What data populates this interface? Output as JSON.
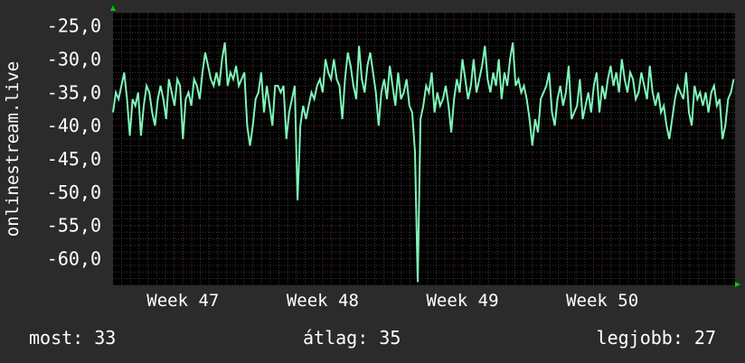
{
  "ylabel": "onlinestream.live",
  "footer": {
    "now": "most: 33",
    "avg": "átlag: 35",
    "best": "legjobb: 27"
  },
  "colors": {
    "background": "#2b2b2b",
    "plot_background": "#000000",
    "line": "#7ff5b8",
    "grid_major": "#5a2020",
    "grid_minor": "#3a3a3a",
    "axis_arrow": "#00cc00"
  },
  "chart_data": {
    "type": "line",
    "title": "",
    "xlabel": "",
    "ylabel": "onlinestream.live",
    "ylim": [
      -64,
      -23
    ],
    "yticks": [
      -25,
      -30,
      -35,
      -40,
      -45,
      -50,
      -55,
      -60
    ],
    "ytick_labels": [
      "-25,0",
      "-30,0",
      "-35,0",
      "-40,0",
      "-45,0",
      "-50,0",
      "-55,0",
      "-60,0"
    ],
    "xlim": [
      46.5,
      50.95
    ],
    "xticks": [
      47,
      48,
      49,
      50
    ],
    "xtick_labels": [
      "Week 47",
      "Week 48",
      "Week 49",
      "Week 50"
    ],
    "grid": true,
    "series": [
      {
        "values": [
          [
            46.5,
            -38
          ],
          [
            46.52,
            -35
          ],
          [
            46.54,
            -36
          ],
          [
            46.56,
            -34
          ],
          [
            46.58,
            -32
          ],
          [
            46.6,
            -36
          ],
          [
            46.62,
            -41.5
          ],
          [
            46.64,
            -36
          ],
          [
            46.66,
            -37
          ],
          [
            46.68,
            -35
          ],
          [
            46.7,
            -41.5
          ],
          [
            46.72,
            -37
          ],
          [
            46.74,
            -34
          ],
          [
            46.76,
            -35
          ],
          [
            46.78,
            -38
          ],
          [
            46.8,
            -40
          ],
          [
            46.82,
            -36
          ],
          [
            46.84,
            -34
          ],
          [
            46.86,
            -36
          ],
          [
            46.88,
            -39
          ],
          [
            46.9,
            -33
          ],
          [
            46.92,
            -35
          ],
          [
            46.94,
            -37
          ],
          [
            46.96,
            -33
          ],
          [
            46.98,
            -34
          ],
          [
            47.0,
            -42
          ],
          [
            47.02,
            -36
          ],
          [
            47.04,
            -35
          ],
          [
            47.06,
            -37
          ],
          [
            47.08,
            -33
          ],
          [
            47.1,
            -34
          ],
          [
            47.12,
            -36
          ],
          [
            47.14,
            -32
          ],
          [
            47.16,
            -29
          ],
          [
            47.18,
            -31
          ],
          [
            47.2,
            -33
          ],
          [
            47.22,
            -34
          ],
          [
            47.24,
            -32
          ],
          [
            47.26,
            -34
          ],
          [
            47.28,
            -30
          ],
          [
            47.3,
            -27.5
          ],
          [
            47.32,
            -34
          ],
          [
            47.34,
            -32
          ],
          [
            47.36,
            -33
          ],
          [
            47.38,
            -31
          ],
          [
            47.4,
            -34
          ],
          [
            47.42,
            -33
          ],
          [
            47.44,
            -32
          ],
          [
            47.46,
            -40
          ],
          [
            47.48,
            -43
          ],
          [
            47.5,
            -40
          ],
          [
            47.52,
            -36
          ],
          [
            47.54,
            -35
          ],
          [
            47.56,
            -32
          ],
          [
            47.58,
            -38
          ],
          [
            47.6,
            -34
          ],
          [
            47.62,
            -37
          ],
          [
            47.64,
            -40
          ],
          [
            47.66,
            -34
          ],
          [
            47.68,
            -34
          ],
          [
            47.7,
            -35
          ],
          [
            47.72,
            -34
          ],
          [
            47.74,
            -42
          ],
          [
            47.76,
            -38
          ],
          [
            47.78,
            -36
          ],
          [
            47.8,
            -34
          ],
          [
            47.82,
            -51.2
          ],
          [
            47.84,
            -40
          ],
          [
            47.86,
            -37
          ],
          [
            47.88,
            -39
          ],
          [
            47.9,
            -37
          ],
          [
            47.92,
            -35
          ],
          [
            47.94,
            -36
          ],
          [
            47.96,
            -34
          ],
          [
            47.98,
            -33
          ],
          [
            48.0,
            -35
          ],
          [
            48.02,
            -30
          ],
          [
            48.04,
            -32
          ],
          [
            48.06,
            -33
          ],
          [
            48.08,
            -30
          ],
          [
            48.1,
            -33
          ],
          [
            48.12,
            -34
          ],
          [
            48.14,
            -39
          ],
          [
            48.16,
            -33
          ],
          [
            48.18,
            -29
          ],
          [
            48.2,
            -31
          ],
          [
            48.22,
            -34
          ],
          [
            48.24,
            -36
          ],
          [
            48.26,
            -28
          ],
          [
            48.28,
            -33
          ],
          [
            48.3,
            -35
          ],
          [
            48.32,
            -31
          ],
          [
            48.34,
            -29
          ],
          [
            48.36,
            -32
          ],
          [
            48.38,
            -35
          ],
          [
            48.4,
            -40
          ],
          [
            48.42,
            -35
          ],
          [
            48.44,
            -33
          ],
          [
            48.46,
            -36
          ],
          [
            48.48,
            -31
          ],
          [
            48.5,
            -34
          ],
          [
            48.52,
            -37
          ],
          [
            48.54,
            -32
          ],
          [
            48.56,
            -36
          ],
          [
            48.58,
            -35
          ],
          [
            48.6,
            -33
          ],
          [
            48.62,
            -37
          ],
          [
            48.64,
            -38
          ],
          [
            48.66,
            -44
          ],
          [
            48.68,
            -63.5
          ],
          [
            48.7,
            -39
          ],
          [
            48.72,
            -37
          ],
          [
            48.74,
            -34
          ],
          [
            48.76,
            -35
          ],
          [
            48.78,
            -32
          ],
          [
            48.8,
            -38
          ],
          [
            48.82,
            -35
          ],
          [
            48.84,
            -37
          ],
          [
            48.86,
            -36
          ],
          [
            48.88,
            -34
          ],
          [
            48.9,
            -37
          ],
          [
            48.92,
            -41
          ],
          [
            48.94,
            -36
          ],
          [
            48.96,
            -33
          ],
          [
            48.98,
            -35
          ],
          [
            49.0,
            -30
          ],
          [
            49.02,
            -33
          ],
          [
            49.04,
            -36
          ],
          [
            49.06,
            -34
          ],
          [
            49.08,
            -30
          ],
          [
            49.1,
            -35
          ],
          [
            49.12,
            -33
          ],
          [
            49.14,
            -31
          ],
          [
            49.16,
            -28
          ],
          [
            49.18,
            -33
          ],
          [
            49.2,
            -35
          ],
          [
            49.22,
            -32
          ],
          [
            49.24,
            -34
          ],
          [
            49.26,
            -30
          ],
          [
            49.28,
            -36
          ],
          [
            49.3,
            -32
          ],
          [
            49.32,
            -34
          ],
          [
            49.34,
            -30
          ],
          [
            49.36,
            -27.5
          ],
          [
            49.38,
            -34
          ],
          [
            49.4,
            -33
          ],
          [
            49.42,
            -35
          ],
          [
            49.44,
            -34
          ],
          [
            49.46,
            -36
          ],
          [
            49.48,
            -39
          ],
          [
            49.5,
            -43
          ],
          [
            49.52,
            -39
          ],
          [
            49.54,
            -41
          ],
          [
            49.56,
            -36
          ],
          [
            49.58,
            -35
          ],
          [
            49.6,
            -34
          ],
          [
            49.62,
            -32
          ],
          [
            49.64,
            -38
          ],
          [
            49.66,
            -40
          ],
          [
            49.68,
            -36
          ],
          [
            49.7,
            -34
          ],
          [
            49.72,
            -37
          ],
          [
            49.74,
            -35
          ],
          [
            49.76,
            -31
          ],
          [
            49.78,
            -39
          ],
          [
            49.8,
            -38
          ],
          [
            49.82,
            -37
          ],
          [
            49.84,
            -33
          ],
          [
            49.86,
            -39
          ],
          [
            49.88,
            -37
          ],
          [
            49.9,
            -35
          ],
          [
            49.92,
            -38
          ],
          [
            49.94,
            -34
          ],
          [
            49.96,
            -32
          ],
          [
            49.98,
            -38
          ],
          [
            50.0,
            -34
          ],
          [
            50.02,
            -36
          ],
          [
            50.04,
            -33
          ],
          [
            50.06,
            -31
          ],
          [
            50.08,
            -34
          ],
          [
            50.1,
            -32
          ],
          [
            50.12,
            -35
          ],
          [
            50.14,
            -30
          ],
          [
            50.16,
            -33
          ],
          [
            50.18,
            -35
          ],
          [
            50.2,
            -32
          ],
          [
            50.22,
            -33
          ],
          [
            50.24,
            -36
          ],
          [
            50.26,
            -35
          ],
          [
            50.28,
            -32
          ],
          [
            50.3,
            -34
          ],
          [
            50.32,
            -36
          ],
          [
            50.34,
            -31
          ],
          [
            50.36,
            -35
          ],
          [
            50.38,
            -37
          ],
          [
            50.4,
            -35
          ],
          [
            50.42,
            -38
          ],
          [
            50.44,
            -37
          ],
          [
            50.46,
            -40
          ],
          [
            50.48,
            -42
          ],
          [
            50.5,
            -39
          ],
          [
            50.52,
            -36
          ],
          [
            50.54,
            -34
          ],
          [
            50.56,
            -35
          ],
          [
            50.58,
            -36
          ],
          [
            50.6,
            -32
          ],
          [
            50.62,
            -38
          ],
          [
            50.64,
            -40
          ],
          [
            50.66,
            -34
          ],
          [
            50.68,
            -36
          ],
          [
            50.7,
            -35
          ],
          [
            50.72,
            -37
          ],
          [
            50.74,
            -35
          ],
          [
            50.76,
            -38
          ],
          [
            50.78,
            -35
          ],
          [
            50.8,
            -34
          ],
          [
            50.82,
            -37
          ],
          [
            50.84,
            -36
          ],
          [
            50.86,
            -42
          ],
          [
            50.88,
            -40
          ],
          [
            50.9,
            -36
          ],
          [
            50.92,
            -35
          ],
          [
            50.94,
            -33
          ]
        ]
      }
    ]
  }
}
